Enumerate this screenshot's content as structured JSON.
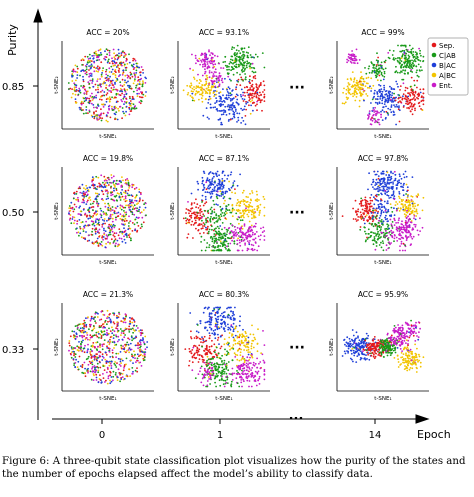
{
  "figure": {
    "y_axis_label": "Purity",
    "x_axis_label": "Epoch",
    "purity_ticks": [
      "0.85",
      "0.50",
      "0.33"
    ],
    "epoch_ticks": [
      "0",
      "1",
      "14"
    ],
    "ellipsis": "···",
    "axis_x_label": "t-SNE₁",
    "axis_y_label": "t-SNE₂",
    "legend": [
      {
        "label": "Sep.",
        "color": "#e31a1c"
      },
      {
        "label": "C|AB",
        "color": "#1a9a1a"
      },
      {
        "label": "B|AC",
        "color": "#1f3fd8"
      },
      {
        "label": "A|BC",
        "color": "#f2c400"
      },
      {
        "label": "Ent.",
        "color": "#c81cc8"
      }
    ],
    "panels": [
      {
        "acc": "ACC = 20%",
        "row": 0,
        "col": 0,
        "style": "random"
      },
      {
        "acc": "ACC = 93.1%",
        "row": 0,
        "col": 1,
        "style": "clusters"
      },
      {
        "acc": "ACC = 99%",
        "row": 0,
        "col": 2,
        "style": "clusters2"
      },
      {
        "acc": "ACC = 19.8%",
        "row": 1,
        "col": 0,
        "style": "random"
      },
      {
        "acc": "ACC = 87.1%",
        "row": 1,
        "col": 1,
        "style": "disk"
      },
      {
        "acc": "ACC = 97.8%",
        "row": 1,
        "col": 2,
        "style": "disk2"
      },
      {
        "acc": "ACC = 21.3%",
        "row": 2,
        "col": 0,
        "style": "random"
      },
      {
        "acc": "ACC = 80.3%",
        "row": 2,
        "col": 1,
        "style": "blob"
      },
      {
        "acc": "ACC = 95.9%",
        "row": 2,
        "col": 2,
        "style": "stripes"
      }
    ]
  },
  "caption": "Figure 6: A three-qubit state classification plot visualizes how the purity of the states and the number of epochs elapsed affect the model’s ability to classify data."
}
